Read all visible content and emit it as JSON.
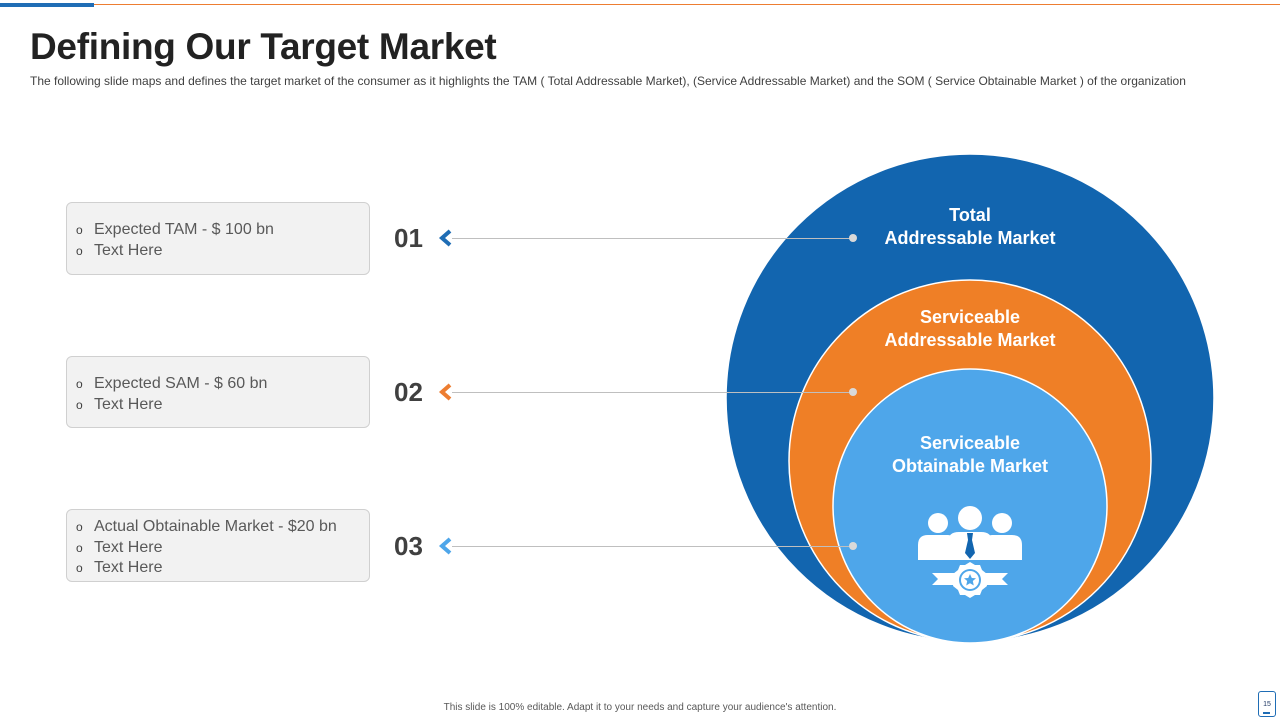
{
  "slide": {
    "title": "Defining Our Target Market",
    "subtitle": "The following  slide maps and defines the target market of the consumer as it highlights  the TAM ( Total Addressable Market), (Service  Addressable Market) and the SOM ( Service  Obtainable Market ) of the organization",
    "footer": "This slide is 100% editable. Adapt it to your needs and capture your audience's attention.",
    "page_number": "15"
  },
  "bullet_glyph": "o",
  "items": [
    {
      "number": "01",
      "color": "#1f6db5",
      "lines": [
        "Expected TAM - $ 100 bn",
        "Text  Here"
      ]
    },
    {
      "number": "02",
      "color": "#ed7d31",
      "lines": [
        "Expected SAM - $ 60 bn",
        "Text  Here"
      ]
    },
    {
      "number": "03",
      "color": "#4ea6ea",
      "lines": [
        "Actual Obtainable Market - $20 bn",
        "Text  Here",
        "Text  Here"
      ]
    }
  ],
  "circles": {
    "tam": {
      "line1": "Total",
      "line2": "Addressable Market",
      "color": "#1265af"
    },
    "sam": {
      "line1": "Serviceable",
      "line2": "Addressable Market",
      "color": "#ef7f26"
    },
    "som": {
      "line1": "Serviceable",
      "line2": "Obtainable Market",
      "color": "#4ea6ea",
      "icon": "team-award-icon"
    }
  }
}
